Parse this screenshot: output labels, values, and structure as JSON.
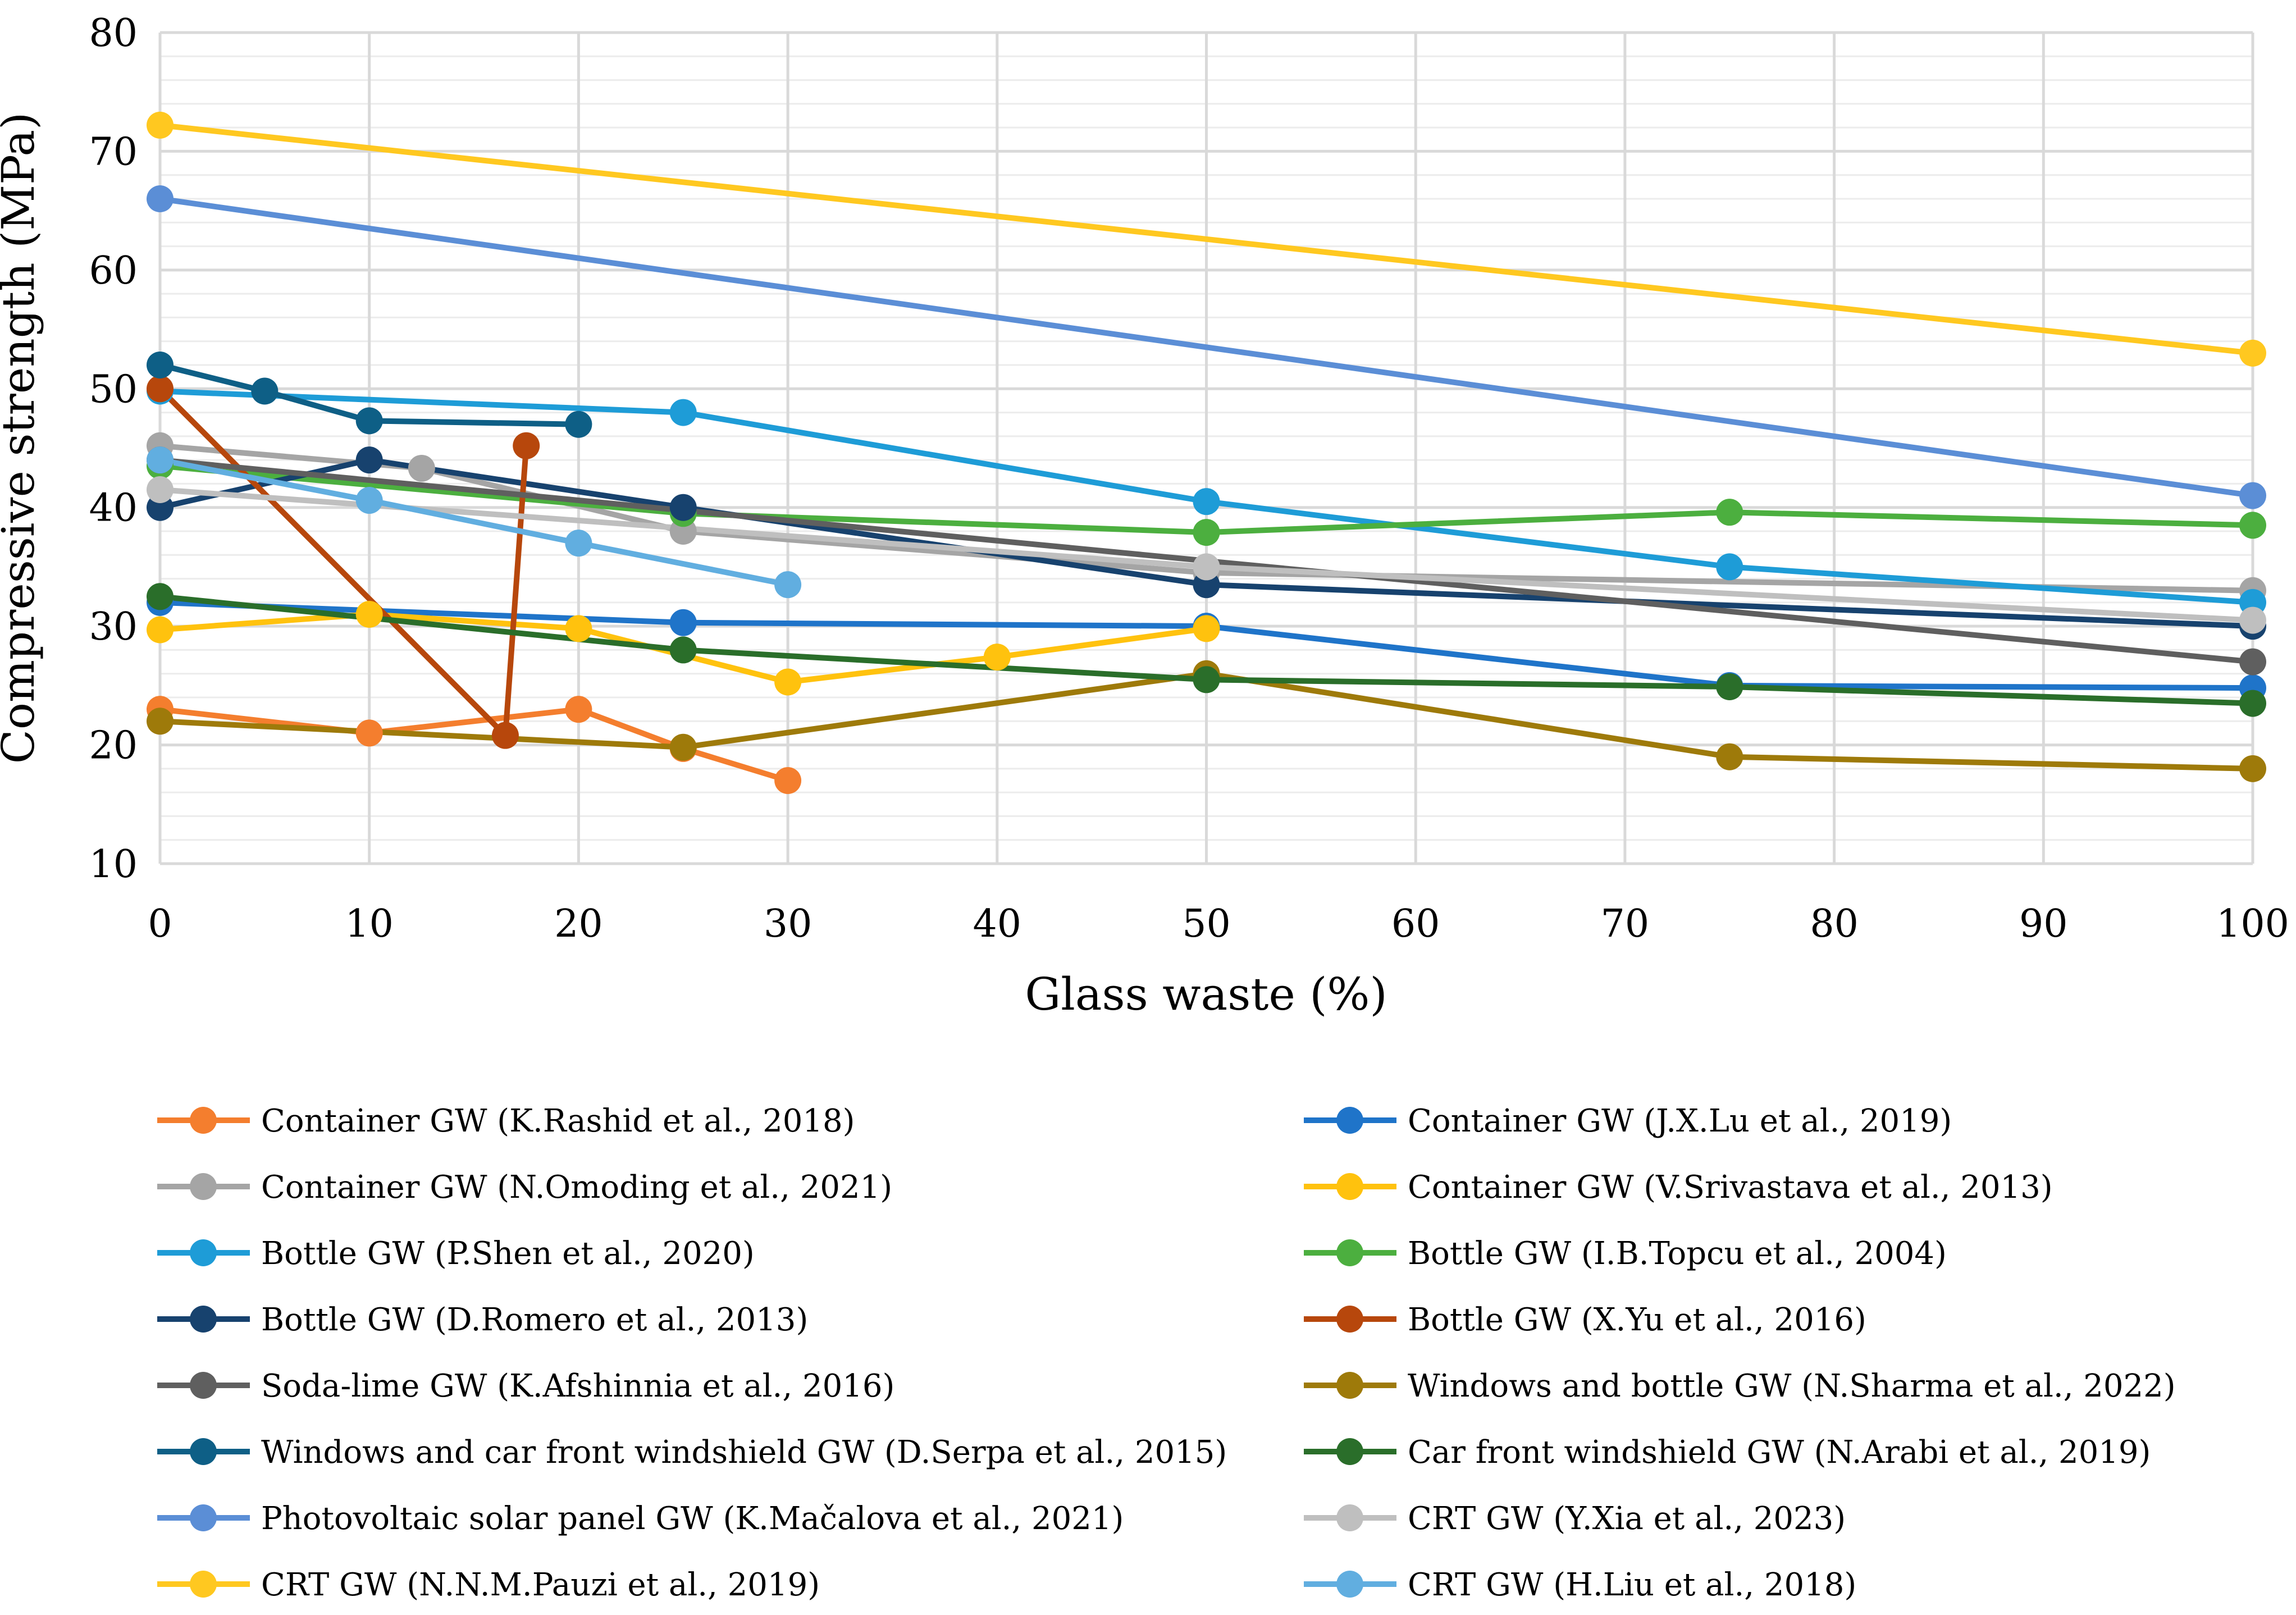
{
  "chart_data": {
    "type": "line",
    "title": "",
    "xlabel": "Glass waste (%)",
    "ylabel": "Compressive strength (MPa)",
    "xlim": [
      0,
      100
    ],
    "ylim": [
      10,
      80
    ],
    "x_ticks": [
      0,
      10,
      20,
      30,
      40,
      50,
      60,
      70,
      80,
      90,
      100
    ],
    "y_ticks": [
      10,
      20,
      30,
      40,
      50,
      60,
      70,
      80
    ],
    "grid": true,
    "legend_position": "bottom",
    "series": [
      {
        "name": "Container GW (K.Rashid et al., 2018)",
        "color": "#F47E2E",
        "x": [
          0,
          10,
          20,
          25,
          30
        ],
        "y": [
          23,
          21,
          23,
          19.7,
          17
        ]
      },
      {
        "name": "Container GW (J.X.Lu et al., 2019)",
        "color": "#1F74C9",
        "x": [
          0,
          25,
          50,
          75,
          100
        ],
        "y": [
          32,
          30.3,
          30,
          25,
          24.8
        ]
      },
      {
        "name": "Container GW (N.Omoding et al., 2021)",
        "color": "#A5A5A5",
        "x": [
          0,
          12.5,
          25,
          50,
          100
        ],
        "y": [
          45.2,
          43.3,
          38,
          34.5,
          33
        ]
      },
      {
        "name": "Container GW (V.Srivastava et al., 2013)",
        "color": "#FFC20E",
        "x": [
          0,
          10,
          20,
          30,
          40,
          50
        ],
        "y": [
          29.7,
          31,
          29.8,
          25.3,
          27.4,
          29.8
        ]
      },
      {
        "name": "Bottle GW (P.Shen et al., 2020)",
        "color": "#1E9CD7",
        "x": [
          0,
          25,
          50,
          75,
          100
        ],
        "y": [
          49.8,
          48,
          40.5,
          35,
          32
        ]
      },
      {
        "name": "Bottle GW (I.B.Topcu et al., 2004)",
        "color": "#4CAF3F",
        "x": [
          0,
          25,
          50,
          75,
          100
        ],
        "y": [
          43.5,
          39.5,
          37.9,
          39.6,
          38.5
        ]
      },
      {
        "name": "Bottle GW (D.Romero et al., 2013)",
        "color": "#17426E",
        "x": [
          0,
          10,
          25,
          50,
          100
        ],
        "y": [
          40,
          44,
          40,
          33.5,
          30
        ]
      },
      {
        "name": "Bottle GW (X.Yu et al., 2016)",
        "color": "#B7470C",
        "x": [
          0,
          16.5,
          17.5
        ],
        "y": [
          50,
          20.8,
          45.2
        ]
      },
      {
        "name": "Soda-lime GW (K.Afshinnia et al., 2016)",
        "color": "#5F5F5F",
        "x": [
          0,
          100
        ],
        "y": [
          44,
          27
        ]
      },
      {
        "name": "Windows and bottle GW (N.Sharma et al., 2022)",
        "color": "#9E7A0A",
        "x": [
          0,
          25,
          50,
          75,
          100
        ],
        "y": [
          22,
          19.8,
          26,
          19,
          18
        ]
      },
      {
        "name": "Windows and car front windshield GW (D.Serpa et al., 2015)",
        "color": "#0E5F86",
        "x": [
          0,
          5,
          10,
          20
        ],
        "y": [
          52,
          49.8,
          47.3,
          47
        ]
      },
      {
        "name": "Car front windshield GW (N.Arabi et al., 2019)",
        "color": "#2A6E2A",
        "x": [
          0,
          25,
          50,
          75,
          100
        ],
        "y": [
          32.5,
          28,
          25.5,
          24.9,
          23.5
        ]
      },
      {
        "name": "Photovoltaic solar panel GW (K.Mačalova et al., 2021)",
        "color": "#5B8ED6",
        "x": [
          0,
          100
        ],
        "y": [
          66,
          41
        ]
      },
      {
        "name": "CRT GW (Y.Xia et al., 2023)",
        "color": "#BFBFBF",
        "x": [
          0,
          50,
          100
        ],
        "y": [
          41.5,
          35,
          30.5
        ]
      },
      {
        "name": "CRT GW (N.N.M.Pauzi et al., 2019)",
        "color": "#FFC820",
        "x": [
          0,
          100
        ],
        "y": [
          72.2,
          53
        ]
      },
      {
        "name": "CRT GW (H.Liu et al., 2018)",
        "color": "#61AEE0",
        "x": [
          0,
          10,
          20,
          30
        ],
        "y": [
          44,
          40.6,
          37,
          33.5
        ]
      }
    ]
  }
}
